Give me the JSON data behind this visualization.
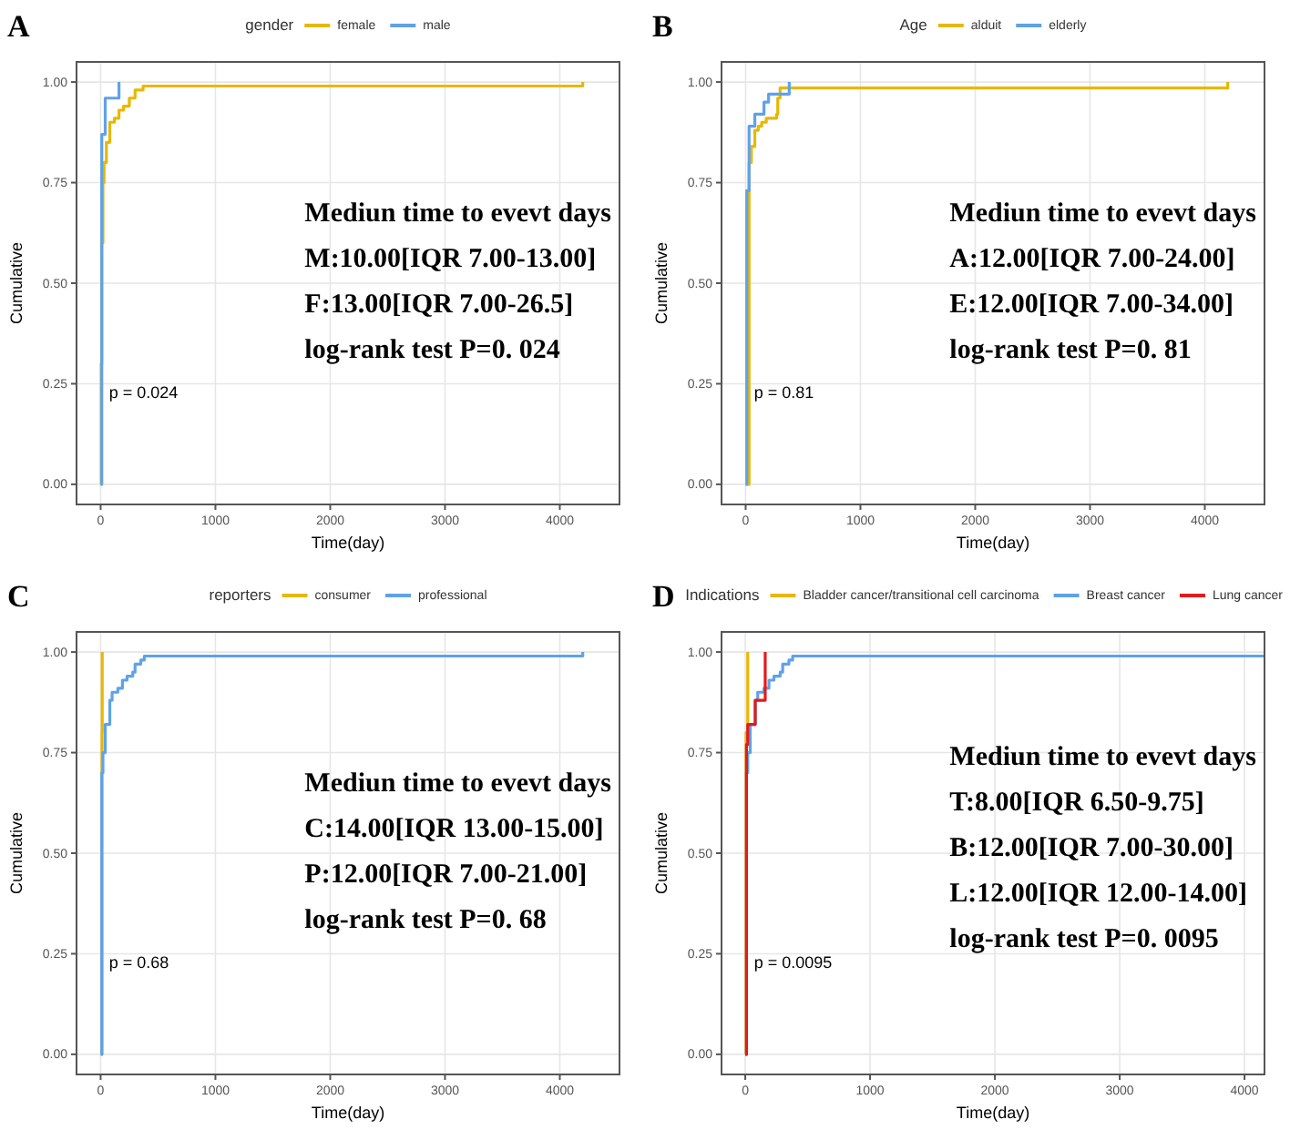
{
  "chart_data": [
    {
      "type": "step",
      "title": "A",
      "legend_title": "gender",
      "xlabel": "Time(day)",
      "ylabel": "Cumulative",
      "xlim": [
        -210,
        4520
      ],
      "ylim": [
        -0.05,
        1.05
      ],
      "xticks": [
        0,
        1000,
        2000,
        3000,
        4000
      ],
      "yticks": [
        {
          "value": 0,
          "label": "0.00"
        },
        {
          "value": 0.25,
          "label": "0.25"
        },
        {
          "value": 0.5,
          "label": "0.50"
        },
        {
          "value": 0.75,
          "label": "0.75"
        },
        {
          "value": 1,
          "label": "1.00"
        }
      ],
      "grid": true,
      "legend": "top",
      "annotations": [
        "Mediun time to evevt days",
        "M:10.00[IQR 7.00-13.00]",
        "F:13.00[IQR 7.00-26.5]",
        "log-rank test P=0. 024",
        "p = 0.024"
      ],
      "series": [
        {
          "name": "female",
          "color": "#e7b800",
          "x": [
            0,
            5,
            10,
            20,
            30,
            50,
            80,
            120,
            160,
            200,
            250,
            300,
            370,
            4200,
            4200
          ],
          "values": [
            0,
            0.3,
            0.6,
            0.75,
            0.8,
            0.85,
            0.9,
            0.91,
            0.93,
            0.94,
            0.96,
            0.98,
            0.99,
            0.99,
            1.0
          ]
        },
        {
          "name": "male",
          "color": "#5fa2e8",
          "x": [
            0,
            10,
            40,
            150,
            160
          ],
          "values": [
            0,
            0.87,
            0.96,
            0.96,
            1.0
          ]
        }
      ]
    },
    {
      "type": "step",
      "title": "B",
      "legend_title": "Age",
      "xlabel": "Time(day)",
      "ylabel": "Cumulative",
      "xlim": [
        -210,
        4520
      ],
      "ylim": [
        -0.05,
        1.05
      ],
      "xticks": [
        0,
        1000,
        2000,
        3000,
        4000
      ],
      "yticks": [
        {
          "value": 0,
          "label": "0.00"
        },
        {
          "value": 0.25,
          "label": "0.25"
        },
        {
          "value": 0.5,
          "label": "0.50"
        },
        {
          "value": 0.75,
          "label": "0.75"
        },
        {
          "value": 1,
          "label": "1.00"
        }
      ],
      "grid": true,
      "legend": "top",
      "annotations": [
        "Mediun time to evevt days",
        "A:12.00[IQR 7.00-24.00]",
        "E:12.00[IQR 7.00-34.00]",
        "log-rank test P=0. 81",
        "p = 0.81"
      ],
      "series": [
        {
          "name": "alduit",
          "color": "#e7b800",
          "x": [
            0,
            30,
            50,
            80,
            110,
            140,
            180,
            270,
            280,
            300,
            4200,
            4200
          ],
          "values": [
            0,
            0.8,
            0.84,
            0.88,
            0.89,
            0.9,
            0.91,
            0.92,
            0.96,
            0.985,
            0.985,
            1.0
          ]
        },
        {
          "name": "elderly",
          "color": "#5fa2e8",
          "x": [
            0,
            10,
            30,
            80,
            150,
            160,
            200,
            370,
            380
          ],
          "values": [
            0,
            0.73,
            0.89,
            0.92,
            0.92,
            0.95,
            0.97,
            0.97,
            1.0
          ]
        }
      ]
    },
    {
      "type": "step",
      "title": "C",
      "legend_title": "reporters",
      "xlabel": "Time(day)",
      "ylabel": "Cumulative",
      "xlim": [
        -210,
        4520
      ],
      "ylim": [
        -0.05,
        1.05
      ],
      "xticks": [
        0,
        1000,
        2000,
        3000,
        4000
      ],
      "yticks": [
        {
          "value": 0,
          "label": "0.00"
        },
        {
          "value": 0.25,
          "label": "0.25"
        },
        {
          "value": 0.5,
          "label": "0.50"
        },
        {
          "value": 0.75,
          "label": "0.75"
        },
        {
          "value": 1,
          "label": "1.00"
        }
      ],
      "grid": true,
      "legend": "top",
      "annotations": [
        "Mediun time to evevt days",
        "C:14.00[IQR 13.00-15.00]",
        "P:12.00[IQR 7.00-21.00]",
        "log-rank test P=0. 68",
        "p = 0.68"
      ],
      "series": [
        {
          "name": "consumer",
          "color": "#e7b800",
          "x": [
            0,
            12,
            14
          ],
          "values": [
            0,
            0.8,
            1.0
          ]
        },
        {
          "name": "professional",
          "color": "#5fa2e8",
          "x": [
            0,
            10,
            20,
            40,
            80,
            100,
            150,
            190,
            230,
            280,
            300,
            350,
            380,
            4200,
            4200
          ],
          "values": [
            0,
            0.7,
            0.75,
            0.82,
            0.88,
            0.9,
            0.91,
            0.93,
            0.94,
            0.95,
            0.97,
            0.98,
            0.99,
            0.99,
            1.0
          ]
        }
      ]
    },
    {
      "type": "step",
      "title": "D",
      "legend_title": "Indications",
      "xlabel": "Time(day)",
      "ylabel": "Cumulative",
      "xlim": [
        -190,
        4160
      ],
      "ylim": [
        -0.05,
        1.05
      ],
      "xticks": [
        0,
        1000,
        2000,
        3000,
        4000
      ],
      "yticks": [
        {
          "value": 0,
          "label": "0.00"
        },
        {
          "value": 0.25,
          "label": "0.25"
        },
        {
          "value": 0.5,
          "label": "0.50"
        },
        {
          "value": 0.75,
          "label": "0.75"
        },
        {
          "value": 1,
          "label": "1.00"
        }
      ],
      "grid": true,
      "legend": "top",
      "annotations": [
        "Mediun time to evevt days",
        "T:8.00[IQR 6.50-9.75]",
        "B:12.00[IQR 7.00-30.00]",
        "L:12.00[IQR 12.00-14.00]",
        "log-rank test P=0. 0095",
        "p = 0.0095"
      ],
      "series": [
        {
          "name": "Bladder cancer/transitional cell carcinoma",
          "color": "#e7b800",
          "x": [
            0,
            7,
            20
          ],
          "values": [
            0,
            0.8,
            1.0
          ]
        },
        {
          "name": "Breast cancer",
          "color": "#5fa2e8",
          "x": [
            0,
            10,
            20,
            40,
            80,
            100,
            150,
            190,
            230,
            280,
            300,
            350,
            380,
            4160
          ],
          "values": [
            0,
            0.7,
            0.75,
            0.82,
            0.88,
            0.9,
            0.91,
            0.93,
            0.94,
            0.95,
            0.97,
            0.98,
            0.99,
            0.99
          ]
        },
        {
          "name": "Lung cancer",
          "color": "#e31a1c",
          "x": [
            0,
            10,
            20,
            80,
            150,
            160
          ],
          "values": [
            0,
            0.77,
            0.82,
            0.88,
            0.88,
            1.0
          ]
        }
      ]
    }
  ]
}
